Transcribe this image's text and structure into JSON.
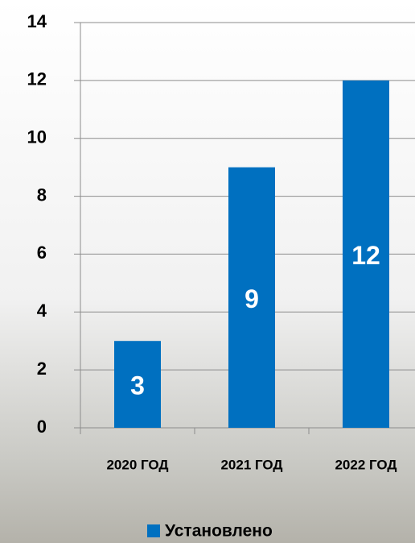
{
  "chart_data": {
    "type": "bar",
    "categories": [
      "2020 ГОД",
      "2021 ГОД",
      "2022 ГОД"
    ],
    "series": [
      {
        "name": "Установлено",
        "color": "#0070c0",
        "values": [
          3,
          9,
          12
        ]
      }
    ],
    "ylim": [
      0,
      14
    ],
    "yticks": [
      0,
      2,
      4,
      6,
      8,
      10,
      12,
      14
    ],
    "grid": true,
    "legend": "bottom"
  }
}
